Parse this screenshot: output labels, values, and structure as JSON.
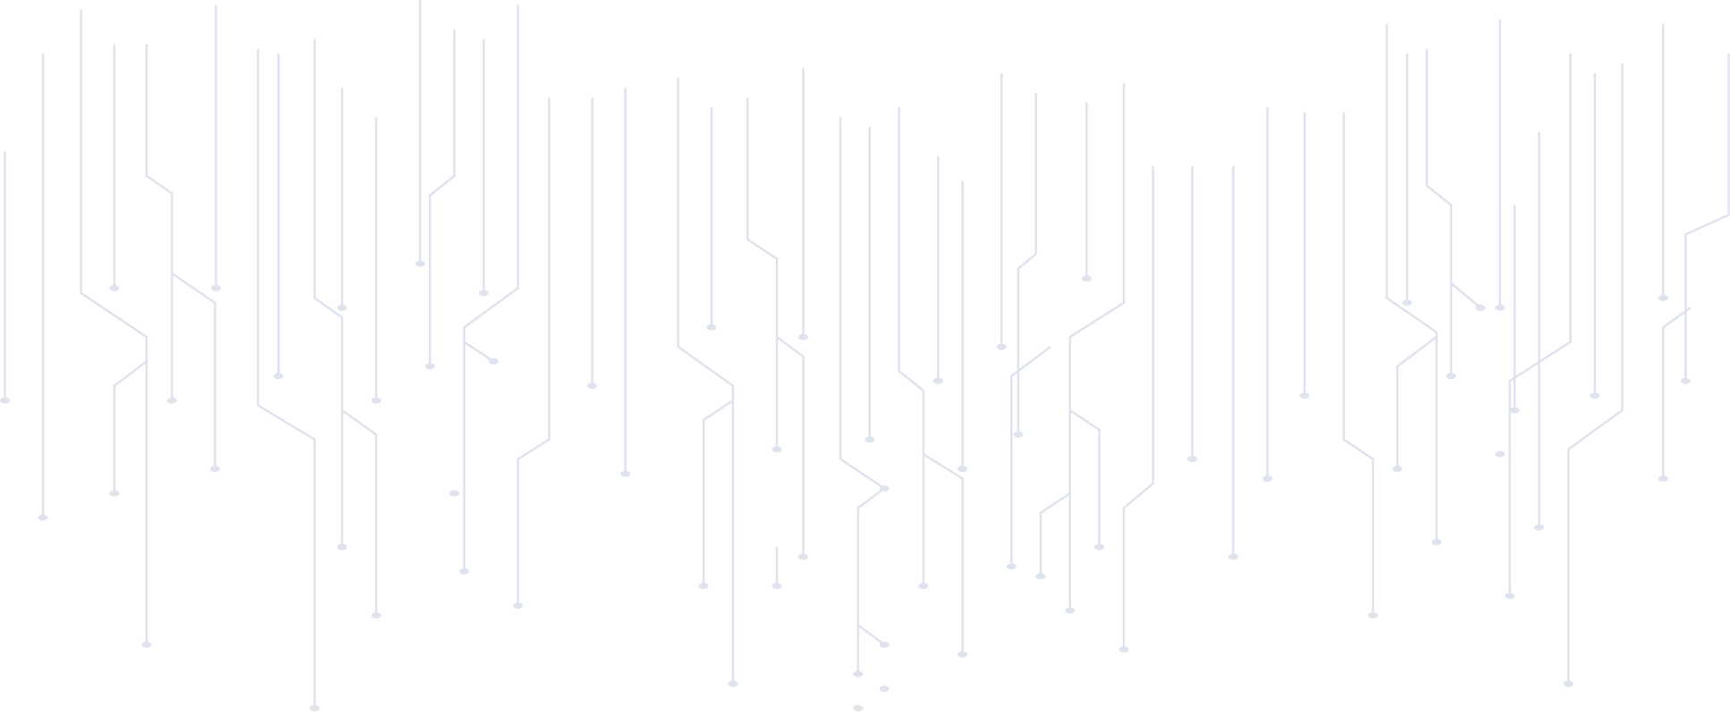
{
  "background": {
    "pattern": "circuit-traces",
    "line_color": "#f1f3f9",
    "background_color": "#ffffff"
  }
}
